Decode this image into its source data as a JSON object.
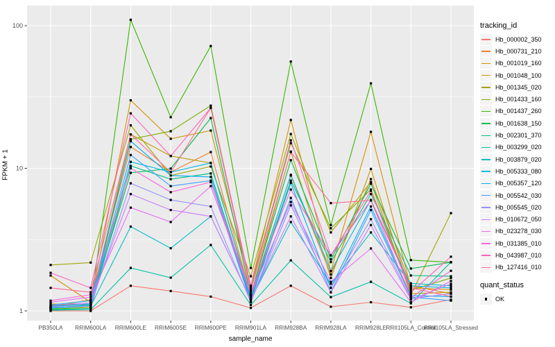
{
  "chart_data": {
    "type": "line",
    "title": "",
    "xlabel": "sample_name",
    "ylabel": "FPKM + 1",
    "y_scale": "log10",
    "ylim": [
      0.8,
      140
    ],
    "y_ticks": [
      1,
      10,
      100
    ],
    "y_tick_labels": [
      "1",
      "10",
      "100"
    ],
    "y_minor_ticks": [
      3.162,
      31.623
    ],
    "grid": true,
    "legend_position": "right",
    "panel_bg": "#EBEBEB",
    "grid_color": "#FFFFFF",
    "point_color": "#000000",
    "axis_text_color": "#4D4D4D",
    "tick_color": "#333333",
    "categories": [
      "PB350LA",
      "RRIM600LA",
      "RRIM600LE",
      "RRIM600SE",
      "RRIM600PE",
      "RRIM901LA",
      "RRIM928BA",
      "RRIM928LA",
      "RRIM928LE",
      "RRII105LA_Control",
      "RRII105LA_Stressed"
    ],
    "series_legend_title": "tracking_id",
    "status_legend_title": "quant_status",
    "status_legend": {
      "label": "OK",
      "marker": "filled-black-square"
    },
    "series": [
      {
        "name": "Hb_000002_350",
        "color": "#F8766D",
        "values": [
          1.0,
          1.0,
          1.5,
          1.38,
          1.26,
          1.05,
          1.5,
          1.07,
          1.15,
          1.06,
          1.2
        ]
      },
      {
        "name": "Hb_000731_210",
        "color": "#EA8331",
        "values": [
          1.06,
          1.2,
          14.1,
          9.4,
          13.0,
          1.3,
          8.9,
          1.8,
          8.4,
          1.5,
          1.32
        ]
      },
      {
        "name": "Hb_001019_160",
        "color": "#D89000",
        "values": [
          1.77,
          1.15,
          30.0,
          16.1,
          18.4,
          1.5,
          21.8,
          1.9,
          18.0,
          1.45,
          1.41
        ]
      },
      {
        "name": "Hb_001048_100",
        "color": "#C09B00",
        "values": [
          1.12,
          1.1,
          17.3,
          12.2,
          10.9,
          1.28,
          13.1,
          1.7,
          9.9,
          1.32,
          1.35
        ]
      },
      {
        "name": "Hb_001345_020",
        "color": "#A3A500",
        "values": [
          2.1,
          2.18,
          20.0,
          8.9,
          10.3,
          1.75,
          17.4,
          3.55,
          8.0,
          1.3,
          4.85
        ]
      },
      {
        "name": "Hb_001433_160",
        "color": "#7CAE00",
        "values": [
          1.03,
          1.06,
          16.0,
          18.2,
          27.5,
          1.45,
          15.0,
          3.8,
          7.1,
          1.4,
          1.7
        ]
      },
      {
        "name": "Hb_001437_260",
        "color": "#39B600",
        "values": [
          1.05,
          1.1,
          110.0,
          22.8,
          72.0,
          2.0,
          56.0,
          4.0,
          39.4,
          2.27,
          2.19
        ]
      },
      {
        "name": "Hb_001638_150",
        "color": "#00BB4E",
        "values": [
          1.08,
          1.12,
          9.3,
          9.95,
          22.5,
          1.3,
          11.4,
          2.3,
          7.8,
          1.98,
          2.19
        ]
      },
      {
        "name": "Hb_002301_370",
        "color": "#00BF7D",
        "values": [
          1.02,
          1.04,
          10.4,
          8.4,
          9.2,
          1.22,
          8.2,
          2.2,
          6.6,
          1.77,
          1.75
        ]
      },
      {
        "name": "Hb_003299_020",
        "color": "#00C1A3",
        "values": [
          1.01,
          1.02,
          2.0,
          1.71,
          2.9,
          1.1,
          2.26,
          1.25,
          1.6,
          1.13,
          2.2
        ]
      },
      {
        "name": "Hb_003879_020",
        "color": "#00BFC4",
        "values": [
          1.04,
          1.08,
          3.9,
          2.75,
          4.6,
          1.2,
          4.2,
          1.55,
          3.55,
          1.56,
          1.5
        ]
      },
      {
        "name": "Hb_005333_080",
        "color": "#00BAE0",
        "values": [
          1.05,
          1.1,
          11.1,
          9.4,
          10.9,
          1.25,
          9.0,
          1.9,
          6.0,
          1.5,
          1.45
        ]
      },
      {
        "name": "Hb_005357_120",
        "color": "#00B0F6",
        "values": [
          1.1,
          1.18,
          15.5,
          8.9,
          8.7,
          1.18,
          7.9,
          1.45,
          5.4,
          1.28,
          1.26
        ]
      },
      {
        "name": "Hb_005542_030",
        "color": "#35A2FF",
        "values": [
          1.07,
          1.12,
          12.4,
          7.5,
          8.2,
          1.15,
          6.2,
          1.35,
          5.1,
          1.25,
          1.18
        ]
      },
      {
        "name": "Hb_005545_020",
        "color": "#9590FF",
        "values": [
          1.06,
          1.08,
          7.85,
          6.0,
          5.4,
          1.15,
          5.5,
          1.45,
          4.4,
          1.22,
          1.32
        ]
      },
      {
        "name": "Hb_010672_050",
        "color": "#C77CFF",
        "values": [
          1.09,
          1.14,
          6.6,
          5.1,
          4.6,
          1.2,
          4.6,
          1.35,
          4.0,
          1.2,
          1.55
        ]
      },
      {
        "name": "Hb_023278_030",
        "color": "#E76BF3",
        "values": [
          1.15,
          1.25,
          5.3,
          4.2,
          7.5,
          1.3,
          5.8,
          1.6,
          2.74,
          1.15,
          1.62
        ]
      },
      {
        "name": "Hb_031385_010",
        "color": "#FA62DB",
        "values": [
          1.18,
          1.3,
          10.0,
          6.8,
          8.0,
          1.35,
          7.1,
          2.45,
          5.95,
          1.24,
          1.91
        ]
      },
      {
        "name": "Hb_043987_010",
        "color": "#FF62BC",
        "values": [
          1.85,
          1.45,
          24.3,
          12.2,
          26.5,
          1.5,
          15.7,
          2.45,
          6.95,
          1.35,
          2.4
        ]
      },
      {
        "name": "Hb_127416_010",
        "color": "#FF6A98",
        "values": [
          1.45,
          1.35,
          17.3,
          9.4,
          26.5,
          1.4,
          13.0,
          5.7,
          5.95,
          1.45,
          1.26
        ]
      }
    ]
  }
}
